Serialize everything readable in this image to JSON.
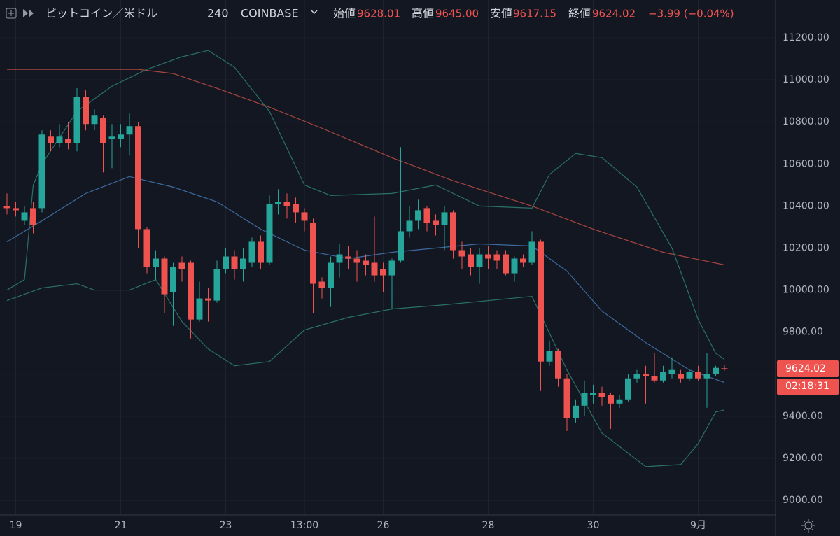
{
  "header": {
    "symbol": "ビットコイン／米ドル",
    "interval": "240",
    "exchange": "COINBASE",
    "open_label": "始値",
    "open": "9628.01",
    "high_label": "高値",
    "high": "9645.00",
    "low_label": "安値",
    "low": "9617.15",
    "close_label": "終値",
    "close": "9624.02",
    "change": "−3.99 (−0.04%)",
    "countdown": "02:18:31"
  },
  "chart_data": {
    "type": "candlestick",
    "categories": [
      null,
      "19",
      null,
      null,
      null,
      null,
      null,
      null,
      null,
      null,
      null,
      null,
      null,
      "21",
      null,
      null,
      null,
      null,
      null,
      null,
      null,
      null,
      null,
      null,
      null,
      "23",
      null,
      null,
      null,
      null,
      null,
      null,
      null,
      null,
      "13:00",
      null,
      null,
      null,
      null,
      null,
      null,
      null,
      null,
      "26",
      null,
      null,
      null,
      null,
      null,
      null,
      null,
      null,
      null,
      null,
      null,
      "28",
      null,
      null,
      null,
      null,
      null,
      null,
      null,
      null,
      null,
      null,
      null,
      "30",
      null,
      null,
      null,
      null,
      null,
      null,
      null,
      null,
      null,
      null,
      null,
      "9月",
      null,
      null,
      null
    ],
    "open": [
      10400,
      10390,
      10330,
      10390,
      10390,
      10730,
      10700,
      10720,
      10700,
      10920,
      10790,
      10820,
      10720,
      10720,
      10740,
      10780,
      10290,
      10110,
      10150,
      9990,
      10130,
      10130,
      9860,
      9960,
      9950,
      10100,
      10160,
      10100,
      10130,
      10230,
      10130,
      10410,
      10420,
      10410,
      10370,
      10320,
      10040,
      10010,
      10130,
      10160,
      10150,
      10140,
      10130,
      10100,
      10070,
      10140,
      10280,
      10330,
      10390,
      10330,
      10310,
      10370,
      10190,
      10170,
      10110,
      10170,
      10170,
      10170,
      10080,
      10150,
      10130,
      10230,
      9660,
      9710,
      9580,
      9390,
      9450,
      9500,
      9510,
      9500,
      9460,
      9480,
      9580,
      9600,
      9590,
      9570,
      9600,
      9600,
      9580,
      9610,
      9580,
      9600,
      9628.01
    ],
    "high": [
      10460,
      10420,
      10400,
      10420,
      10760,
      10760,
      10790,
      10800,
      10960,
      10950,
      10860,
      10830,
      10790,
      10790,
      10840,
      10800,
      10300,
      10190,
      10160,
      10130,
      10160,
      10140,
      10040,
      10010,
      10140,
      10200,
      10190,
      10200,
      10250,
      10260,
      10450,
      10480,
      10460,
      10440,
      10390,
      10340,
      10060,
      10160,
      10220,
      10210,
      10190,
      10170,
      10350,
      10130,
      10150,
      10680,
      10400,
      10430,
      10400,
      10360,
      10400,
      10380,
      10230,
      10200,
      10200,
      10210,
      10190,
      10190,
      10160,
      10170,
      10280,
      10240,
      9760,
      9720,
      9600,
      9480,
      9570,
      9550,
      9540,
      9510,
      9500,
      9600,
      9620,
      9640,
      9700,
      9640,
      9680,
      9620,
      9620,
      9640,
      9700,
      9640,
      9645
    ],
    "low": [
      10360,
      10350,
      10310,
      10270,
      10370,
      10660,
      10680,
      10670,
      10660,
      10760,
      10760,
      10560,
      10580,
      10680,
      10640,
      10200,
      10080,
      10050,
      9890,
      9830,
      10040,
      9770,
      9850,
      9850,
      9940,
      10080,
      10050,
      10040,
      10110,
      10100,
      10120,
      10360,
      10340,
      10320,
      10280,
      9890,
      9960,
      9920,
      10060,
      10100,
      10040,
      10070,
      10040,
      9990,
      9910,
      10130,
      10250,
      10290,
      10280,
      10260,
      10190,
      10150,
      10100,
      10070,
      10030,
      10100,
      10100,
      10070,
      10040,
      10110,
      10120,
      9520,
      9640,
      9540,
      9330,
      9370,
      9400,
      9460,
      9450,
      9340,
      9440,
      9470,
      9560,
      9460,
      9560,
      9560,
      9580,
      9560,
      9570,
      9570,
      9440,
      9590,
      9617.15
    ],
    "close": [
      10390,
      10380,
      10370,
      10310,
      10740,
      10700,
      10730,
      10700,
      10920,
      10790,
      10830,
      10700,
      10730,
      10740,
      10780,
      10290,
      10110,
      10150,
      9980,
      10110,
      10100,
      9860,
      9960,
      9950,
      10100,
      10160,
      10100,
      10150,
      10230,
      10130,
      10410,
      10420,
      10400,
      10370,
      10330,
      10030,
      10010,
      10130,
      10170,
      10150,
      10130,
      10120,
      10070,
      10070,
      10140,
      10280,
      10330,
      10380,
      10320,
      10310,
      10370,
      10190,
      10160,
      10110,
      10170,
      10150,
      10140,
      10080,
      10150,
      10130,
      10230,
      9660,
      9710,
      9580,
      9390,
      9450,
      9510,
      9510,
      9490,
      9460,
      9480,
      9580,
      9600,
      9590,
      9570,
      9610,
      9620,
      9580,
      9610,
      9580,
      9600,
      9630,
      9624.02
    ],
    "up_color": "#26a69a",
    "down_color": "#ef5350",
    "indicators": [
      {
        "color": "#a8453f",
        "x": [
          0,
          8,
          15,
          19,
          24,
          30,
          36,
          44,
          51,
          60,
          67,
          75,
          82
        ],
        "values": [
          11050,
          11050,
          11050,
          11030,
          10960,
          10870,
          10770,
          10630,
          10520,
          10400,
          10290,
          10180,
          10120
        ]
      },
      {
        "color": "#3d6a9e",
        "x": [
          0,
          4,
          9,
          14,
          19,
          24,
          29,
          34,
          39,
          44,
          49,
          54,
          60,
          64,
          68,
          73,
          78,
          82
        ],
        "values": [
          10230,
          10330,
          10460,
          10540,
          10490,
          10420,
          10290,
          10190,
          10150,
          10180,
          10200,
          10220,
          10210,
          10090,
          9900,
          9750,
          9620,
          9560
        ]
      },
      {
        "color": "#2a7168",
        "x": [
          0,
          2,
          3,
          4,
          8,
          12,
          16,
          20,
          23,
          26,
          30,
          34,
          37,
          44,
          49,
          54,
          60,
          62,
          65,
          68,
          72,
          76,
          79,
          81,
          82
        ],
        "values": [
          10000,
          10050,
          10500,
          10600,
          10850,
          10970,
          11050,
          11110,
          11140,
          11060,
          10850,
          10500,
          10450,
          10460,
          10500,
          10400,
          10390,
          10550,
          10650,
          10630,
          10490,
          10200,
          9860,
          9700,
          9670
        ]
      },
      {
        "color": "#2a7168",
        "x": [
          0,
          4,
          8,
          10,
          14,
          17,
          20,
          23,
          26,
          30,
          34,
          39,
          44,
          50,
          60,
          64,
          68,
          73,
          77,
          79,
          81,
          82
        ],
        "values": [
          9950,
          10010,
          10030,
          10000,
          10000,
          10050,
          9850,
          9720,
          9640,
          9660,
          9810,
          9870,
          9910,
          9930,
          9970,
          9620,
          9320,
          9160,
          9170,
          9270,
          9420,
          9430
        ]
      }
    ],
    "ylim": [
      8930,
      11380
    ],
    "yticks": [
      {
        "value": 9000,
        "label": "9000.00"
      },
      {
        "value": 9200,
        "label": "9200.00"
      },
      {
        "value": 9400,
        "label": "9400.00"
      },
      {
        "value": 9600,
        "label": "9600.00"
      },
      {
        "value": 9800,
        "label": "9800.00"
      },
      {
        "value": 10000,
        "label": "10000.00"
      },
      {
        "value": 10200,
        "label": "10200.00"
      },
      {
        "value": 10400,
        "label": "10400.00"
      },
      {
        "value": 10600,
        "label": "10600.00"
      },
      {
        "value": 10800,
        "label": "10800.00"
      },
      {
        "value": 11000,
        "label": "11000.00"
      },
      {
        "value": 11200,
        "label": "11200.00"
      }
    ],
    "grid": true
  }
}
